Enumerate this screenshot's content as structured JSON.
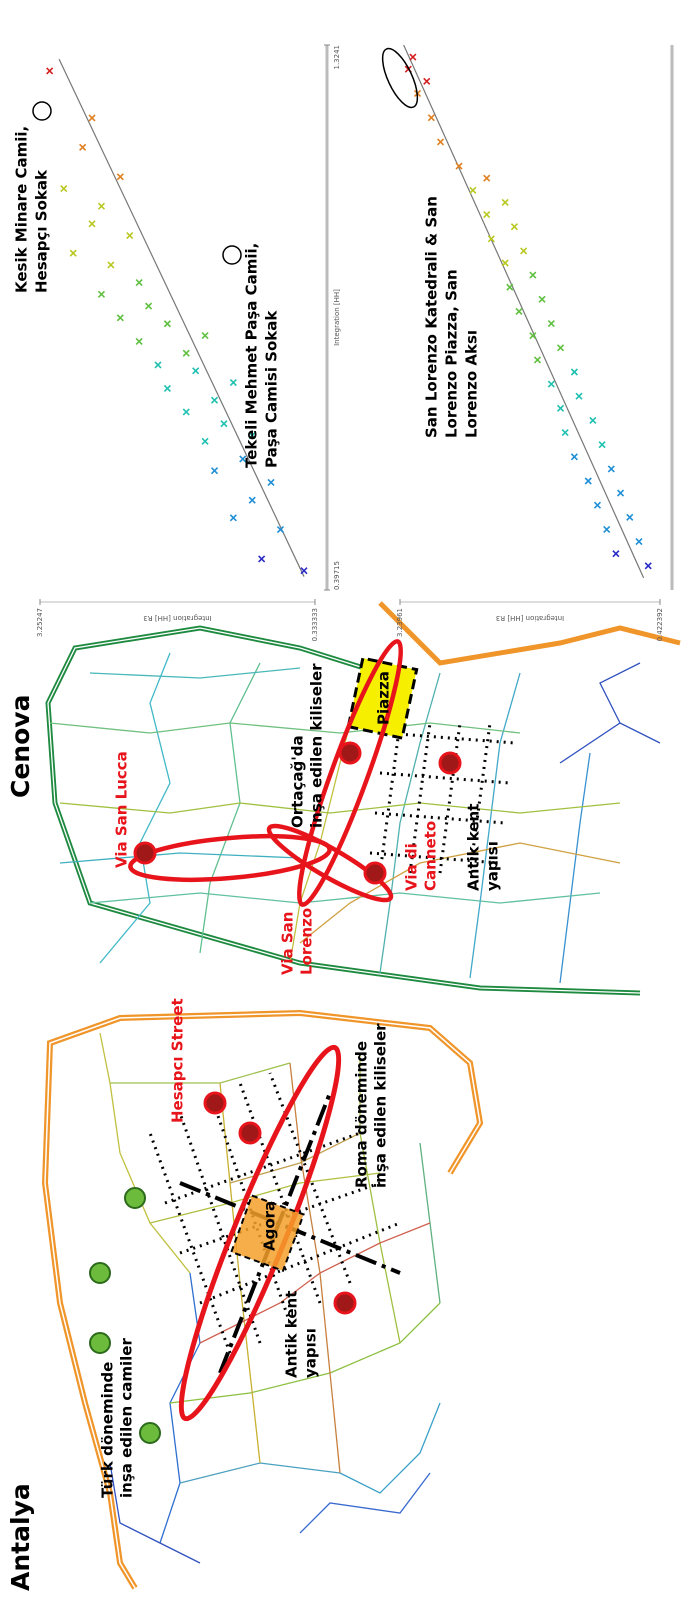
{
  "maps": [
    {
      "title": "Antalya",
      "labels": [
        {
          "lines": [
            "Türk döneminde",
            "inşa edilen camiler"
          ]
        },
        {
          "lines": [
            "Antik kent",
            "yapısı"
          ]
        },
        {
          "lines": [
            "Roma döneminde",
            "inşa edilen kiliseler"
          ]
        },
        {
          "lines": [
            "Agora"
          ]
        },
        {
          "lines": [
            "Hesapcı Street"
          ],
          "color": "#e8141b"
        }
      ]
    },
    {
      "title": "Cenova",
      "labels": [
        {
          "lines": [
            "Via San Lucca"
          ],
          "color": "#e8141b"
        },
        {
          "lines": [
            "Ortaçağ'da",
            "inşa edilen kiliseler"
          ]
        },
        {
          "lines": [
            "Piazza"
          ]
        },
        {
          "lines": [
            "Via San",
            "Lorenzo"
          ],
          "color": "#e8141b"
        },
        {
          "lines": [
            "Via di",
            "Canneto"
          ],
          "color": "#e8141b"
        },
        {
          "lines": [
            "Antik kent",
            "yapısı"
          ]
        }
      ]
    }
  ],
  "chart_data": [
    {
      "type": "scatter",
      "x_label": "Integration [HH]",
      "y_label": "Integration [HH] R3",
      "xlim": [
        0.39715,
        1.3241
      ],
      "xticks": [
        0.39715,
        1.3241
      ],
      "ylim": [
        0.333333,
        3.25247
      ],
      "yticks": [
        0.333333,
        3.25247
      ],
      "colormap": [
        "#2a2ac8",
        "#1f8fd6",
        "#1fc0b0",
        "#60c040",
        "#b8c820",
        "#e08020",
        "#d42020"
      ],
      "x": [
        0.43,
        0.45,
        0.5,
        0.52,
        0.55,
        0.58,
        0.6,
        0.62,
        0.65,
        0.66,
        0.68,
        0.7,
        0.72,
        0.74,
        0.75,
        0.77,
        0.78,
        0.8,
        0.82,
        0.83,
        0.85,
        0.86,
        0.88,
        0.9,
        0.92,
        0.95,
        0.97,
        1.0,
        1.02,
        1.05,
        1.08,
        1.1,
        1.15,
        1.2,
        1.28
      ],
      "y": [
        0.45,
        0.9,
        0.7,
        1.2,
        1.0,
        0.8,
        1.4,
        1.1,
        1.5,
        1.0,
        1.3,
        1.7,
        1.4,
        1.9,
        1.2,
        1.6,
        2.0,
        1.7,
        2.2,
        1.5,
        1.9,
        2.4,
        2.1,
        2.6,
        2.2,
        2.5,
        2.9,
        2.3,
        2.7,
        2.6,
        3.0,
        2.4,
        2.8,
        2.7,
        3.15
      ],
      "trendline": {
        "x": [
          0.42,
          1.3
        ],
        "y": [
          0.45,
          3.05
        ]
      },
      "annotations": [
        {
          "lines": [
            "Kesik Minare Camii,",
            "Hesapçı Sokak"
          ]
        },
        {
          "lines": [
            "Tekeli Mehmet Paşa Camii,",
            "Paşa Camisi Sokak"
          ]
        }
      ]
    },
    {
      "type": "scatter",
      "y_label": "Integration [HH] R3",
      "xlim": [
        0.4,
        1.3
      ],
      "ylim": [
        0.422392,
        3.23961
      ],
      "yticks": [
        0.422392,
        3.23961
      ],
      "colormap": [
        "#2a2ac8",
        "#1f8fd6",
        "#1fc0b0",
        "#60c040",
        "#b8c820",
        "#e08020",
        "#d42020"
      ],
      "x": [
        0.44,
        0.46,
        0.48,
        0.5,
        0.52,
        0.54,
        0.56,
        0.58,
        0.6,
        0.62,
        0.64,
        0.66,
        0.68,
        0.7,
        0.72,
        0.74,
        0.76,
        0.78,
        0.8,
        0.82,
        0.84,
        0.86,
        0.88,
        0.9,
        0.92,
        0.94,
        0.96,
        0.98,
        1.0,
        1.02,
        1.04,
        1.06,
        1.08,
        1.1,
        1.14,
        1.18,
        1.22,
        1.24,
        1.26,
        1.28
      ],
      "y": [
        0.55,
        0.9,
        0.65,
        1.0,
        0.75,
        1.1,
        0.85,
        1.2,
        0.95,
        1.35,
        1.05,
        1.45,
        1.15,
        1.5,
        1.3,
        1.6,
        1.35,
        1.75,
        1.5,
        1.8,
        1.6,
        1.95,
        1.7,
        2.05,
        1.8,
        2.1,
        1.9,
        2.25,
        2.0,
        2.3,
        2.1,
        2.45,
        2.3,
        2.6,
        2.8,
        2.9,
        3.05,
        2.95,
        3.15,
        3.1
      ],
      "trendline": {
        "x": [
          0.42,
          1.3
        ],
        "y": [
          0.6,
          3.2
        ]
      },
      "annotations": [
        {
          "lines": [
            "San Lorenzo Katedrali & San",
            "Lorenzo Piazza, San",
            "Lorenzo Aksı"
          ]
        }
      ]
    }
  ]
}
